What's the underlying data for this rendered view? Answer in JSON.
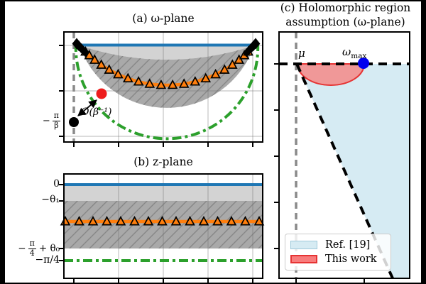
{
  "figure": {
    "background": "#ffffff",
    "frame": "#000000",
    "colors": {
      "blue": "#1f77b4",
      "orange": "#ff7f0e",
      "green": "#2ca02c",
      "red_dot": "#ee1c1c",
      "black_dot": "#000000",
      "blue_dot": "#0000ee",
      "gray_dashed": "#8a8a8a",
      "grid": "#9a9a9a",
      "light_fill": "#d3d3d3",
      "dark_fill": "#a9a9a9",
      "hatch_color": "#878787",
      "lightblue_fill": "#d6ebf3",
      "lightblue_edge": "#9fc9db",
      "red_region_fill": "#f09898",
      "red_edge": "#e63333",
      "legend_red_fill": "#f87c7c"
    }
  },
  "panels": {
    "a": {
      "title": "(a) ω-plane",
      "pi_beta": {
        "sign": "−",
        "num": "π",
        "den": "β"
      },
      "annotation": "O(β⁻¹)"
    },
    "b": {
      "title": "(b) z-plane",
      "labels": {
        "zero": "0",
        "theta1": "−θ₁",
        "pi4theta0": {
          "sign": "−",
          "num": "π",
          "den": "4",
          "rest": "+ θ₀"
        },
        "pi4": "−π/4"
      }
    },
    "c": {
      "title_line1": "(c) Holomorphic region",
      "title_line2": "assumption (ω-plane)",
      "mu": "μ",
      "omega_max": {
        "base": "ω",
        "sub": "max"
      },
      "legend": [
        {
          "label": "Ref. [19]",
          "key": "lightblue"
        },
        {
          "label": "This work",
          "key": "red"
        }
      ]
    }
  },
  "chart_data": [
    {
      "id": "a",
      "type": "area",
      "title": "(a) ω-plane",
      "description": "Schematic ω-plane: gray lens below the blue real-axis segment is the holomorphic image region; darker '/'-hatched bowl is the image of the hatched z-strip; orange contour with triangle markers is the deformed integration contour; green dash-dot semicircular arc is the image of Im z = −π/4; black diamonds cluster at the two branch endpoints; black dot marks −π/β with a red pole a distance O(β⁻¹) away.",
      "triangle_markers": 20,
      "diamonds_per_end": 5,
      "y_tick_labels": [
        "−π/β"
      ],
      "annotations": [
        "O(β⁻¹)"
      ],
      "series": [
        {
          "name": "real-axis segment",
          "color_key": "blue",
          "style": "solid line"
        },
        {
          "name": "holomorphic lens",
          "color_key": "light_fill",
          "style": "filled region"
        },
        {
          "name": "hatched image region",
          "color_key": "dark_fill",
          "style": "filled region with '/' hatch"
        },
        {
          "name": "integration contour",
          "color_key": "orange",
          "style": "solid arc with triangle markers"
        },
        {
          "name": "image of Im z = −π/4",
          "color_key": "green",
          "style": "dash-dot arc"
        },
        {
          "name": "branch-point clusters",
          "color_key": "black_dot",
          "style": "diamond markers at both endpoints"
        },
        {
          "name": "nearby pole",
          "color_key": "red_dot",
          "style": "point"
        },
        {
          "name": "−π/β point",
          "color_key": "black_dot",
          "style": "point"
        }
      ]
    },
    {
      "id": "b",
      "type": "area",
      "title": "(b) z-plane",
      "triangle_markers": 15,
      "y_tick_labels": [
        "0",
        "−θ₁",
        "−π/4 + θ₀",
        "−π/4"
      ],
      "levels": {
        "blue_line": "0",
        "gray_band": [
          "0",
          "−θ₁"
        ],
        "hatched_band": [
          "−θ₁",
          "−π/4 + θ₀"
        ],
        "orange_line": "between −θ₁ and −π/4 + θ₀ (triangle markers)",
        "green_line": "−π/4"
      }
    },
    {
      "id": "c",
      "type": "area",
      "title": "(c) Holomorphic region assumption (ω-plane)",
      "points": [
        {
          "label": "μ",
          "style": "intersection of gray dashed vertical and black dashed horizontal"
        },
        {
          "label": "ωmax",
          "style": "blue dot on the horizontal boundary"
        }
      ],
      "regions": [
        {
          "label": "Ref. [19]",
          "color_key": "lightblue_fill",
          "shape": "wedge right of black dashed diagonal, below black dashed horizontal"
        },
        {
          "label": "This work",
          "color_key": "red_region_fill",
          "shape": "half-disk spanning μ to ωmax under the horizontal boundary"
        }
      ],
      "legend": {
        "position": "lower left",
        "entries": [
          "Ref. [19]",
          "This work"
        ]
      }
    }
  ]
}
